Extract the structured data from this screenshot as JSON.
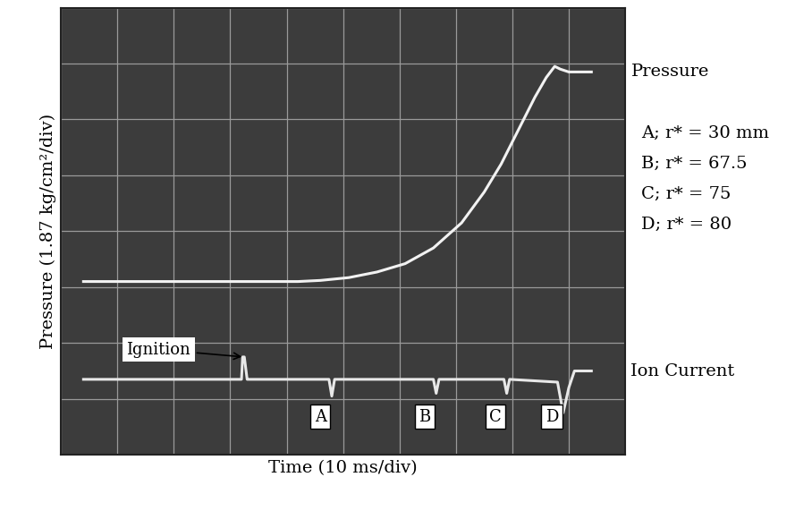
{
  "chart_data": {
    "type": "line",
    "xlabel": "Time (10 ms/div)",
    "ylabel": "Pressure (1.87 kg/cm²/div)",
    "xlim": [
      0,
      10
    ],
    "ylim": [
      0,
      8
    ],
    "xticks": [
      0,
      1,
      2,
      3,
      4,
      5,
      6,
      7,
      8,
      9,
      10
    ],
    "yticks": [
      0,
      1,
      2,
      3,
      4,
      5,
      6,
      7,
      8
    ],
    "grid": true,
    "tick_labels": false,
    "series": [
      {
        "name": "Pressure",
        "color": "#f2f2f2",
        "x": [
          0.4,
          1.5,
          2.5,
          3.5,
          4.2,
          4.6,
          5.1,
          5.6,
          6.1,
          6.6,
          7.1,
          7.5,
          7.8,
          8.1,
          8.4,
          8.6,
          8.75,
          8.85,
          9.0,
          9.4
        ],
        "values": [
          3.1,
          3.1,
          3.1,
          3.1,
          3.1,
          3.12,
          3.17,
          3.27,
          3.42,
          3.7,
          4.15,
          4.7,
          5.2,
          5.8,
          6.4,
          6.75,
          6.95,
          6.9,
          6.85,
          6.85
        ]
      },
      {
        "name": "Ion Current",
        "color": "#e8e8e8",
        "x": [
          0.4,
          3.2,
          3.22,
          3.25,
          3.3,
          3.32,
          4.75,
          4.8,
          4.85,
          6.6,
          6.65,
          6.7,
          7.85,
          7.9,
          7.95,
          8.8,
          8.9,
          9.0,
          9.1,
          9.4
        ],
        "values": [
          1.35,
          1.35,
          1.75,
          1.75,
          1.35,
          1.35,
          1.35,
          1.05,
          1.35,
          1.35,
          1.1,
          1.35,
          1.35,
          1.1,
          1.35,
          1.3,
          0.75,
          1.2,
          1.5,
          1.5
        ]
      }
    ],
    "annotations": [
      {
        "text": "Ignition",
        "x": 3.25,
        "y": 1.75
      }
    ],
    "events": [
      {
        "label": "A",
        "x": 4.8,
        "note": "A; r* = 30 mm"
      },
      {
        "label": "B",
        "x": 6.65,
        "note": "B; r* = 67.5"
      },
      {
        "label": "C",
        "x": 7.9,
        "note": "C; r* = 75"
      },
      {
        "label": "D",
        "x": 8.9,
        "note": "D; r* = 80"
      }
    ]
  }
}
